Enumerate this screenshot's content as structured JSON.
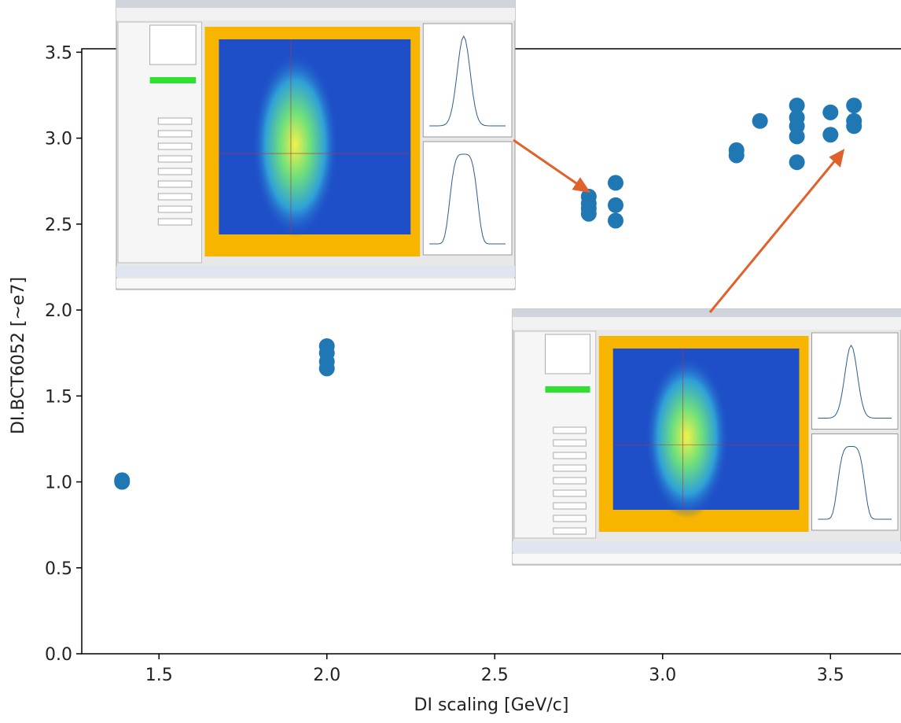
{
  "chart_data": {
    "type": "scatter",
    "xlabel": "DI scaling [GeV/c]",
    "ylabel": "DI.BCT6052 [~e7]",
    "x": [
      1.39,
      1.39,
      2.0,
      2.0,
      2.0,
      2.0,
      2.78,
      2.78,
      2.78,
      2.78,
      2.86,
      2.86,
      2.86,
      3.22,
      3.22,
      3.29,
      3.4,
      3.4,
      3.4,
      3.4,
      3.4,
      3.5,
      3.5,
      3.57,
      3.57,
      3.57
    ],
    "values": [
      1.0,
      1.01,
      1.79,
      1.75,
      1.7,
      1.66,
      2.66,
      2.62,
      2.59,
      2.56,
      2.74,
      2.61,
      2.52,
      2.93,
      2.9,
      3.1,
      3.19,
      3.12,
      3.07,
      3.01,
      2.86,
      3.15,
      3.02,
      3.19,
      3.1,
      3.07
    ],
    "color": "#1f77b4",
    "xlim": [
      1.27,
      3.71
    ],
    "ylim": [
      0,
      3.52
    ],
    "xticks": [
      {
        "value": 1.5,
        "label": "1.5"
      },
      {
        "value": 2,
        "label": "2.0"
      },
      {
        "value": 2.5,
        "label": "2.5"
      },
      {
        "value": 3,
        "label": "3.0"
      },
      {
        "value": 3.5,
        "label": "3.5"
      }
    ],
    "yticks": [
      {
        "value": 0,
        "label": "0.0"
      },
      {
        "value": 0.5,
        "label": "0.5"
      },
      {
        "value": 1,
        "label": "1.0"
      },
      {
        "value": 1.5,
        "label": "1.5"
      },
      {
        "value": 2,
        "label": "2.0"
      },
      {
        "value": 2.5,
        "label": "2.5"
      },
      {
        "value": 3,
        "label": "3.0"
      },
      {
        "value": 3.5,
        "label": "3.5"
      }
    ]
  }
}
